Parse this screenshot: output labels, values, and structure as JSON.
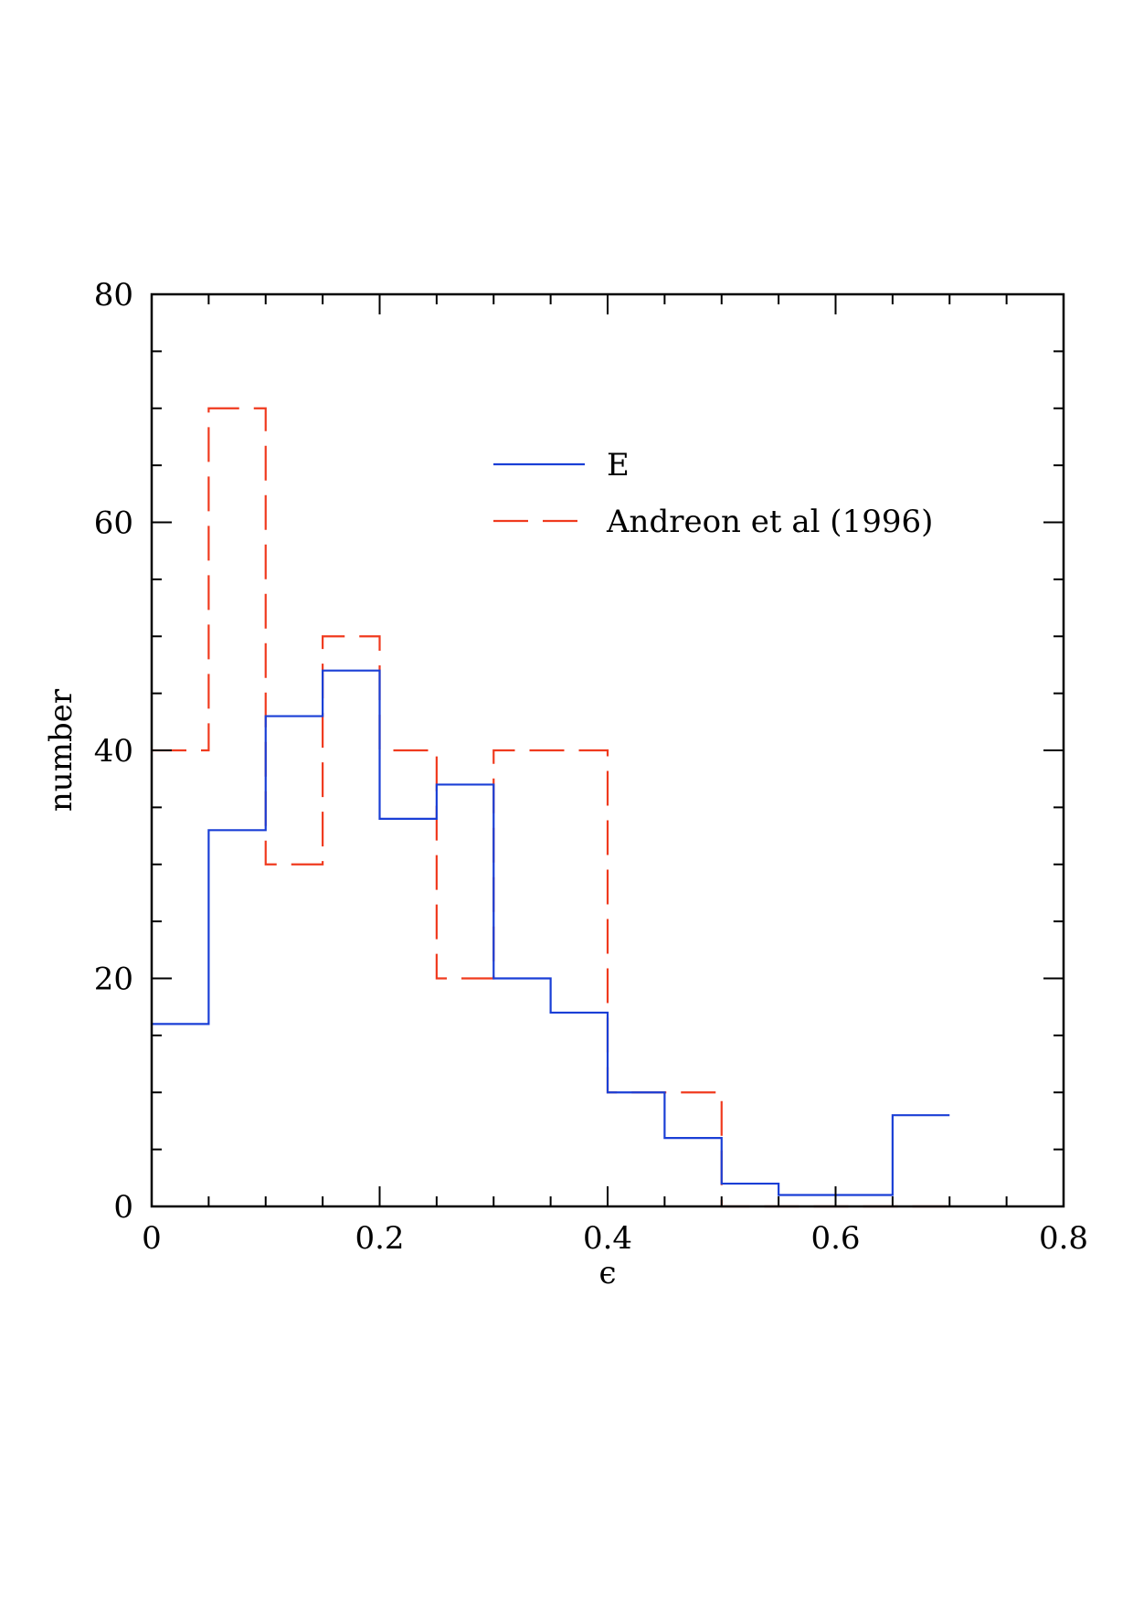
{
  "chart_data": {
    "type": "histogram",
    "title": "",
    "xlabel": "ϵ",
    "ylabel": "number",
    "xlim": [
      0,
      0.8
    ],
    "ylim": [
      0,
      80
    ],
    "x_ticks": [
      0,
      0.2,
      0.4,
      0.6,
      0.8
    ],
    "x_tick_labels": [
      "0",
      "0.2",
      "0.4",
      "0.6",
      "0.8"
    ],
    "x_minor_step": 0.05,
    "y_ticks": [
      0,
      20,
      40,
      60,
      80
    ],
    "y_tick_labels": [
      "0",
      "20",
      "40",
      "60",
      "80"
    ],
    "y_minor_step": 5,
    "grid": false,
    "legend_position": "top-right",
    "bin_edges": [
      0,
      0.05,
      0.1,
      0.15,
      0.2,
      0.25,
      0.3,
      0.35,
      0.4,
      0.45,
      0.5,
      0.55,
      0.6,
      0.65,
      0.7
    ],
    "series": [
      {
        "name": "E",
        "style": "solid",
        "color": "#1a3fd6",
        "values": [
          16,
          33,
          43,
          47,
          34,
          37,
          20,
          17,
          10,
          6,
          2,
          1,
          1,
          8
        ]
      },
      {
        "name": "Andreon et al (1996)",
        "style": "dashed",
        "color": "#f03a1e",
        "values": [
          40,
          70,
          30,
          50,
          40,
          20,
          40,
          40,
          10,
          10,
          0,
          0,
          0,
          0
        ]
      }
    ]
  }
}
